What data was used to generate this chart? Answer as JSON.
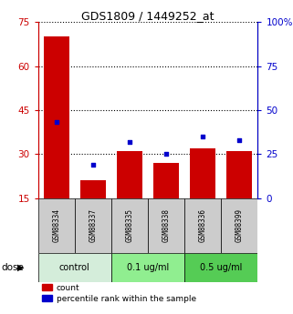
{
  "title": "GDS1809 / 1449252_at",
  "samples": [
    "GSM88334",
    "GSM88337",
    "GSM88335",
    "GSM88338",
    "GSM88336",
    "GSM88399"
  ],
  "counts": [
    70,
    21,
    31,
    27,
    32,
    31
  ],
  "percentiles": [
    43,
    19,
    32,
    25,
    35,
    33
  ],
  "ylim_left": [
    15,
    75
  ],
  "ylim_right": [
    0,
    100
  ],
  "yticks_left": [
    15,
    30,
    45,
    60,
    75
  ],
  "yticks_right": [
    0,
    25,
    50,
    75,
    100
  ],
  "bar_color": "#cc0000",
  "dot_color": "#0000cc",
  "dose_groups": [
    {
      "label": "control",
      "start": 0,
      "end": 1,
      "color": "#d4edda"
    },
    {
      "label": "0.1 ug/ml",
      "start": 2,
      "end": 3,
      "color": "#90ee90"
    },
    {
      "label": "0.5 ug/ml",
      "start": 4,
      "end": 5,
      "color": "#55cc55"
    }
  ],
  "dose_label": "dose",
  "legend_count": "count",
  "legend_percentile": "percentile rank within the sample",
  "axis_left_color": "#cc0000",
  "axis_right_color": "#0000cc",
  "bar_width": 0.7,
  "background_color": "#ffffff",
  "sample_box_color": "#cccccc"
}
